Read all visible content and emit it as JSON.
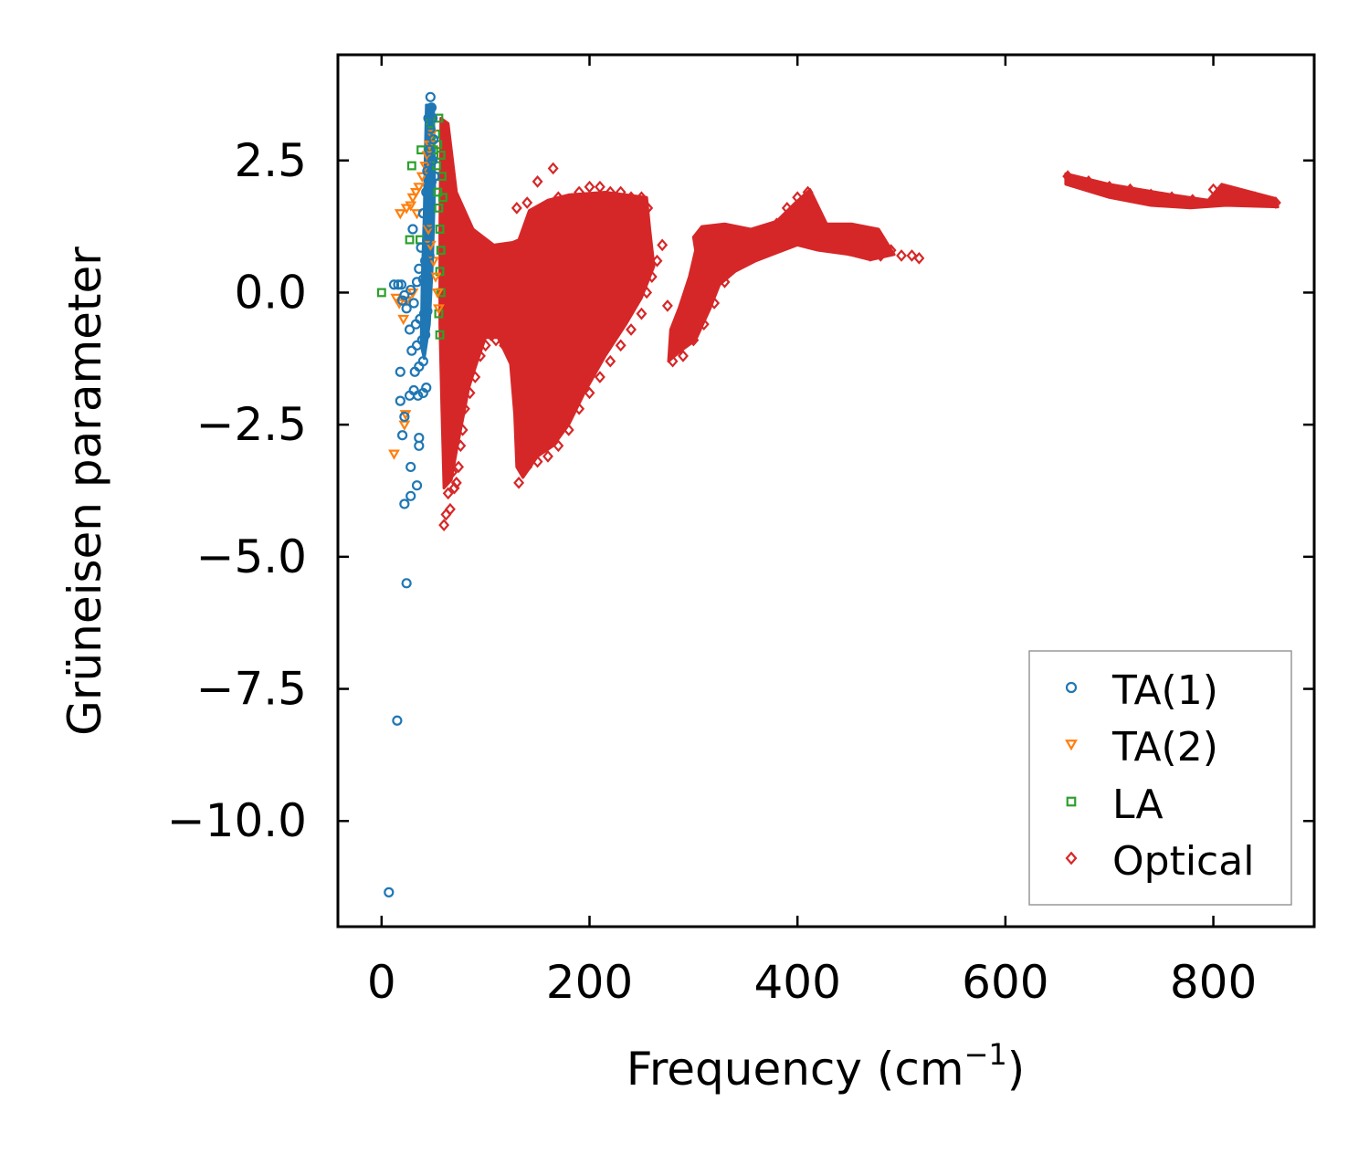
{
  "chart_data": {
    "type": "scatter",
    "title": "",
    "xlabel": "Frequency (cm",
    "xlabel_sup": "−1",
    "xlabel_end": ")",
    "ylabel": "Grüneisen parameter",
    "xlim": [
      -42,
      897
    ],
    "ylim": [
      -12.0,
      4.5
    ],
    "xticks": [
      0,
      200,
      400,
      600,
      800
    ],
    "xtick_labels": [
      "0",
      "200",
      "400",
      "600",
      "800"
    ],
    "yticks": [
      2.5,
      0.0,
      -2.5,
      -5.0,
      -7.5,
      -10.0
    ],
    "ytick_labels": [
      "2.5",
      "0.0",
      "−2.5",
      "−5.0",
      "−7.5",
      "−10.0"
    ],
    "grid": false,
    "legend_position": "lower-right",
    "series": [
      {
        "name": "TA(1)",
        "marker": "circle",
        "color": "#1f77b4",
        "points": [
          [
            7,
            -11.35
          ],
          [
            15,
            -8.1
          ],
          [
            24,
            -5.5
          ],
          [
            22,
            -4.0
          ],
          [
            28,
            -3.85
          ],
          [
            34,
            -3.65
          ],
          [
            28,
            -3.3
          ],
          [
            36,
            -2.9
          ],
          [
            36,
            -2.75
          ],
          [
            20,
            -2.7
          ],
          [
            22,
            -2.35
          ],
          [
            18,
            -2.05
          ],
          [
            27,
            -1.95
          ],
          [
            31,
            -1.85
          ],
          [
            35,
            -1.95
          ],
          [
            40,
            -1.9
          ],
          [
            43,
            -1.8
          ],
          [
            18,
            -1.5
          ],
          [
            32,
            -1.5
          ],
          [
            36,
            -1.4
          ],
          [
            40,
            -1.3
          ],
          [
            29,
            -1.1
          ],
          [
            34,
            -1.0
          ],
          [
            39,
            -0.9
          ],
          [
            42,
            -0.8
          ],
          [
            27,
            -0.7
          ],
          [
            33,
            -0.6
          ],
          [
            37,
            -0.5
          ],
          [
            41,
            -0.4
          ],
          [
            44,
            -0.35
          ],
          [
            24,
            -0.3
          ],
          [
            31,
            -0.2
          ],
          [
            20,
            -0.15
          ],
          [
            22,
            -0.05
          ],
          [
            28,
            0.05
          ],
          [
            12,
            0.15
          ],
          [
            16,
            0.15
          ],
          [
            19,
            0.15
          ],
          [
            34,
            0.2
          ],
          [
            40,
            0.25
          ],
          [
            44,
            0.3
          ],
          [
            36,
            0.45
          ],
          [
            42,
            0.6
          ],
          [
            46,
            0.7
          ],
          [
            38,
            0.85
          ],
          [
            44,
            1.0
          ],
          [
            30,
            1.2
          ],
          [
            46,
            1.3
          ],
          [
            40,
            1.5
          ],
          [
            47,
            1.7
          ],
          [
            43,
            1.9
          ],
          [
            48,
            2.1
          ],
          [
            44,
            2.3
          ],
          [
            49,
            2.5
          ],
          [
            46,
            2.7
          ],
          [
            50,
            2.9
          ],
          [
            47,
            3.1
          ],
          [
            49,
            3.3
          ],
          [
            48,
            3.5
          ],
          [
            47,
            3.7
          ],
          [
            45,
            3.3
          ],
          [
            51,
            2.2
          ]
        ]
      },
      {
        "name": "TA(2)",
        "marker": "triangle-down",
        "color": "#ff7f0e",
        "points": [
          [
            12,
            -3.05
          ],
          [
            23,
            -2.3
          ],
          [
            22,
            -2.5
          ],
          [
            21,
            -0.5
          ],
          [
            14,
            -0.1
          ],
          [
            17,
            -0.2
          ],
          [
            24,
            -0.15
          ],
          [
            30,
            0.0
          ],
          [
            18,
            1.5
          ],
          [
            24,
            1.6
          ],
          [
            28,
            1.65
          ],
          [
            30,
            1.8
          ],
          [
            33,
            1.9
          ],
          [
            36,
            2.0
          ],
          [
            39,
            2.2
          ],
          [
            42,
            2.4
          ],
          [
            44,
            2.6
          ],
          [
            46,
            2.8
          ],
          [
            48,
            3.0
          ],
          [
            34,
            1.5
          ],
          [
            45,
            1.2
          ],
          [
            47,
            0.9
          ],
          [
            50,
            0.6
          ],
          [
            52,
            0.3
          ],
          [
            54,
            0.0
          ],
          [
            55,
            -0.3
          ]
        ]
      },
      {
        "name": "LA",
        "marker": "square",
        "color": "#2ca02c",
        "points": [
          [
            0,
            0.0
          ],
          [
            27,
            1.0
          ],
          [
            29,
            2.4
          ],
          [
            37,
            1.0
          ],
          [
            38,
            2.7
          ],
          [
            47,
            3.2
          ],
          [
            50,
            2.7
          ],
          [
            52,
            3.0
          ],
          [
            53,
            2.4
          ],
          [
            54,
            1.9
          ],
          [
            55,
            1.6
          ],
          [
            56,
            1.2
          ],
          [
            57,
            0.8
          ],
          [
            56,
            0.4
          ],
          [
            57,
            0.0
          ],
          [
            55,
            -0.4
          ],
          [
            56,
            -0.8
          ],
          [
            54,
            2.8
          ],
          [
            55,
            3.3
          ],
          [
            57,
            2.6
          ],
          [
            58,
            2.2
          ],
          [
            59,
            1.8
          ]
        ]
      },
      {
        "name": "Optical",
        "marker": "diamond",
        "color": "#d62728",
        "points": [
          [
            60,
            -4.4
          ],
          [
            62,
            -4.2
          ],
          [
            66,
            -4.1
          ],
          [
            64,
            -3.8
          ],
          [
            70,
            -3.7
          ],
          [
            72,
            -3.6
          ],
          [
            68,
            -3.4
          ],
          [
            74,
            -3.3
          ],
          [
            76,
            -2.9
          ],
          [
            78,
            -2.6
          ],
          [
            80,
            -2.2
          ],
          [
            85,
            -1.9
          ],
          [
            90,
            -1.6
          ],
          [
            95,
            -1.2
          ],
          [
            100,
            -1.0
          ],
          [
            105,
            -0.8
          ],
          [
            110,
            -0.9
          ],
          [
            118,
            -1.0
          ],
          [
            126,
            -1.2
          ],
          [
            132,
            -3.6
          ],
          [
            140,
            -3.3
          ],
          [
            150,
            -3.2
          ],
          [
            160,
            -3.1
          ],
          [
            170,
            -2.9
          ],
          [
            180,
            -2.6
          ],
          [
            190,
            -2.2
          ],
          [
            200,
            -1.9
          ],
          [
            210,
            -1.6
          ],
          [
            220,
            -1.3
          ],
          [
            230,
            -1.0
          ],
          [
            240,
            -0.7
          ],
          [
            250,
            -0.4
          ],
          [
            255,
            0.0
          ],
          [
            260,
            0.3
          ],
          [
            265,
            0.6
          ],
          [
            270,
            0.9
          ],
          [
            275,
            -0.25
          ],
          [
            280,
            -1.3
          ],
          [
            290,
            -1.2
          ],
          [
            300,
            -0.9
          ],
          [
            310,
            -0.6
          ],
          [
            320,
            -0.2
          ],
          [
            330,
            0.2
          ],
          [
            340,
            0.5
          ],
          [
            350,
            0.7
          ],
          [
            360,
            0.9
          ],
          [
            370,
            1.1
          ],
          [
            380,
            1.3
          ],
          [
            390,
            1.6
          ],
          [
            400,
            1.8
          ],
          [
            410,
            1.9
          ],
          [
            420,
            1.2
          ],
          [
            430,
            1.0
          ],
          [
            440,
            0.9
          ],
          [
            450,
            0.8
          ],
          [
            460,
            0.8
          ],
          [
            470,
            0.7
          ],
          [
            480,
            0.7
          ],
          [
            490,
            0.8
          ],
          [
            500,
            0.7
          ],
          [
            510,
            0.7
          ],
          [
            517,
            0.65
          ],
          [
            165,
            2.35
          ],
          [
            150,
            2.1
          ],
          [
            130,
            1.6
          ],
          [
            140,
            1.7
          ],
          [
            170,
            1.8
          ],
          [
            190,
            1.9
          ],
          [
            200,
            2.0
          ],
          [
            210,
            2.0
          ],
          [
            220,
            1.9
          ],
          [
            230,
            1.9
          ],
          [
            240,
            1.8
          ],
          [
            250,
            1.8
          ],
          [
            256,
            1.6
          ],
          [
            660,
            2.2
          ],
          [
            680,
            2.1
          ],
          [
            700,
            2.0
          ],
          [
            720,
            1.95
          ],
          [
            740,
            1.85
          ],
          [
            760,
            1.8
          ],
          [
            780,
            1.75
          ],
          [
            800,
            1.95
          ],
          [
            820,
            1.9
          ],
          [
            840,
            1.8
          ],
          [
            860,
            1.7
          ]
        ]
      }
    ]
  }
}
